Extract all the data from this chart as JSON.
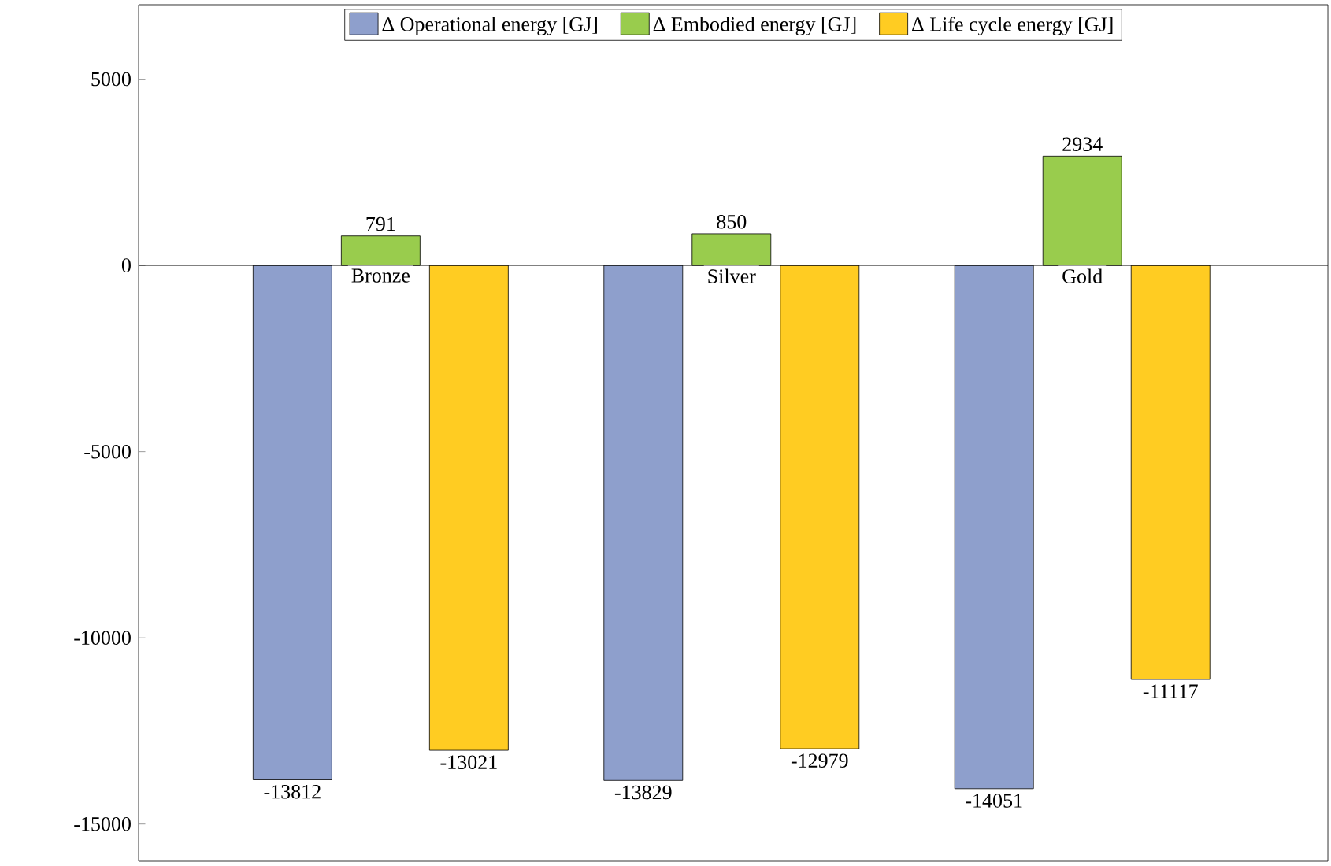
{
  "chart_data": {
    "type": "bar",
    "categories": [
      "Bronze",
      "Silver",
      "Gold"
    ],
    "series": [
      {
        "name": "Δ Operational energy [GJ]",
        "color": "#8e9fcc",
        "values": [
          -13812,
          -13829,
          -14051
        ]
      },
      {
        "name": "Δ Embodied energy [GJ]",
        "color": "#99cc4d",
        "values": [
          791,
          850,
          2934
        ]
      },
      {
        "name": "Δ Life cycle energy [GJ]",
        "color": "#ffcc22",
        "values": [
          -13021,
          -12979,
          -11117
        ]
      }
    ],
    "ylim": [
      -16000,
      7000
    ],
    "yticks": [
      5000,
      0,
      -5000,
      -10000,
      -15000
    ],
    "data_labels": true,
    "legend": "top"
  }
}
